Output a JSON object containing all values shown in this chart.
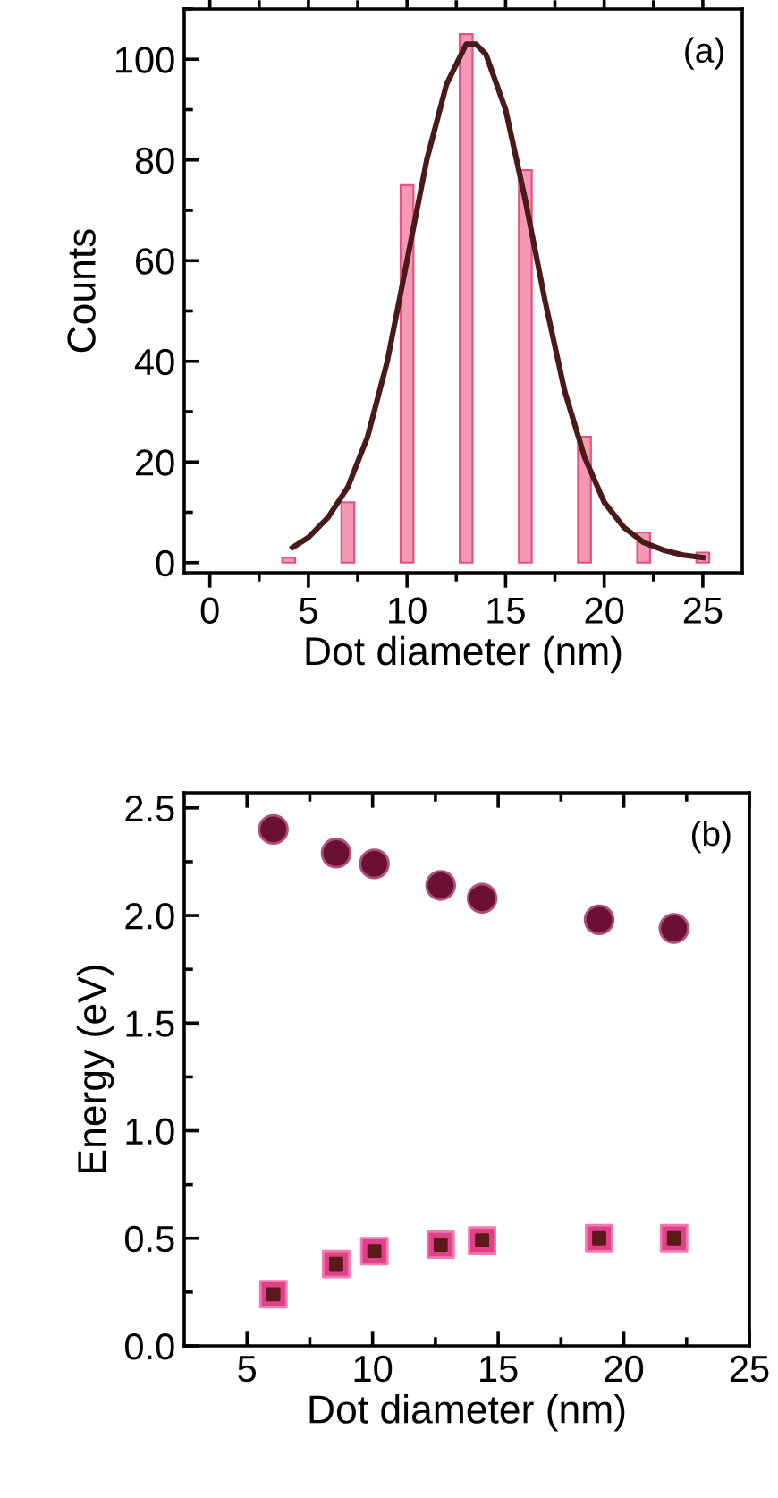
{
  "chart_data": [
    {
      "type": "bar",
      "xlabel": "Dot diameter (nm)",
      "ylabel": "Counts",
      "annotations": [
        "(a)"
      ],
      "xlim": [
        -1.3,
        27
      ],
      "xticks": [
        0,
        5,
        10,
        15,
        20,
        25
      ],
      "ylim": [
        -2,
        110
      ],
      "yticks": [
        0,
        20,
        40,
        60,
        80,
        100
      ],
      "grid": false,
      "legend": false,
      "series": [
        {
          "color": "#f598b4",
          "x": [
            4,
            7,
            10,
            13,
            16,
            19,
            22,
            25
          ],
          "values": [
            1,
            12,
            75,
            105,
            78,
            25,
            6,
            2
          ]
        },
        {
          "type": "line",
          "color": "#4a1a1a",
          "marker": "none",
          "line_style": "solid",
          "x": [
            4.2,
            5,
            6,
            7,
            8,
            9,
            10,
            11,
            12,
            13,
            13.5,
            14,
            15,
            16,
            17,
            18,
            19,
            20,
            21,
            22,
            23,
            24,
            25
          ],
          "values": [
            3,
            5,
            9,
            15,
            25,
            40,
            60,
            80,
            95,
            103,
            103,
            101,
            90,
            72,
            52,
            34,
            21,
            12,
            7,
            4,
            2.5,
            1.5,
            1
          ]
        }
      ]
    },
    {
      "type": "scatter",
      "xlabel": "Dot diameter (nm)",
      "ylabel": "Energy (eV)",
      "annotations": [
        "(b)"
      ],
      "xlim": [
        2.5,
        25
      ],
      "xticks": [
        5,
        10,
        15,
        20,
        25
      ],
      "ylim": [
        0,
        2.57
      ],
      "yticks": [
        {
          "value": 0,
          "label": "0.0"
        },
        0.5,
        {
          "value": 1,
          "label": "1.0"
        },
        1.5,
        {
          "value": 2,
          "label": "2.0"
        },
        2.5
      ],
      "grid": false,
      "legend": false,
      "series": [
        {
          "color": "#6b1035",
          "marker": "circle",
          "x": [
            6.05,
            8.55,
            10.07,
            12.71,
            14.36,
            19.02,
            22.0
          ],
          "values": [
            2.4,
            2.29,
            2.24,
            2.14,
            2.08,
            1.98,
            1.94
          ]
        },
        {
          "color": "#e0408a",
          "marker": "square",
          "x": [
            6.05,
            8.55,
            10.07,
            12.71,
            14.36,
            19.02,
            22.0
          ],
          "values": [
            0.24,
            0.38,
            0.44,
            0.47,
            0.49,
            0.5,
            0.5
          ]
        }
      ]
    }
  ]
}
